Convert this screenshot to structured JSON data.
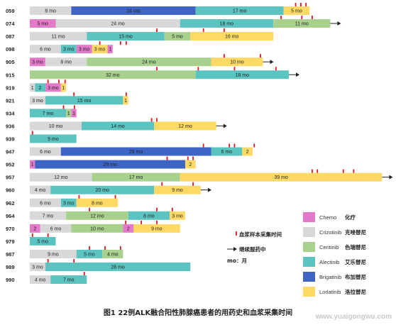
{
  "colors": {
    "Chemo": "#e37ac9",
    "Crizotinib": "#d8d8d8",
    "Ceritinib": "#a9d18e",
    "Alectinib": "#5bc4c0",
    "Brigatinib": "#3e65c6",
    "Lorlatinib": "#ffd966",
    "sample_tick": "#e8141e",
    "arrow": "#222222"
  },
  "chart_data": {
    "type": "swimmer",
    "title": "",
    "xlabel": "",
    "ylabel": "",
    "rows": [
      {
        "id": "059",
        "segments": [
          {
            "drug": "Crizotinib",
            "months": 8,
            "label": "8 mo"
          },
          {
            "drug": "Brigatinib",
            "months": 24,
            "label": "24 mo"
          },
          {
            "drug": "Alectinib",
            "months": 17,
            "label": "17 mo"
          },
          {
            "drug": "Lorlatinib",
            "months": 5,
            "label": "5 mo"
          }
        ],
        "samples": [
          51.3,
          52.3,
          53.3
        ],
        "ongoing": false
      },
      {
        "id": "074",
        "segments": [
          {
            "drug": "Chemo",
            "months": 5,
            "label": "5 mo"
          },
          {
            "drug": "Crizotinib",
            "months": 24,
            "label": "24 mo"
          },
          {
            "drug": "Alectinib",
            "months": 18,
            "label": "18 mo"
          },
          {
            "drug": "Ceritinib",
            "months": 11,
            "label": "11 mo"
          }
        ],
        "samples": [
          48.5,
          52.5,
          54.5
        ],
        "ongoing": true
      },
      {
        "id": "087",
        "segments": [
          {
            "drug": "Crizotinib",
            "months": 11,
            "label": "11 mo"
          },
          {
            "drug": "Alectinib",
            "months": 15,
            "label": "15 mo"
          },
          {
            "drug": "Ceritinib",
            "months": 5,
            "label": "5 mo"
          },
          {
            "drug": "Lorlatinib",
            "months": 16,
            "label": "16 mo"
          }
        ],
        "samples": [
          24.5,
          33.5,
          37.5
        ],
        "ongoing": false
      },
      {
        "id": "098",
        "segments": [
          {
            "drug": "Crizotinib",
            "months": 6,
            "label": "6 mo"
          },
          {
            "drug": "Alectinib",
            "months": 3,
            "label": "3 mo"
          },
          {
            "drug": "Chemo",
            "months": 3,
            "label": "3 mo"
          },
          {
            "drug": "Lorlatinib",
            "months": 3,
            "label": "3 mo"
          },
          {
            "drug": "Chemo",
            "months": 1,
            "label": "1"
          }
        ],
        "samples": [
          13.5,
          17.5,
          18.6
        ],
        "ongoing": false
      },
      {
        "id": "905",
        "segments": [
          {
            "drug": "Chemo",
            "months": 3,
            "label": "3 mo"
          },
          {
            "drug": "Crizotinib",
            "months": 8,
            "label": "8 mo"
          },
          {
            "drug": "Ceritinib",
            "months": 24,
            "label": "24 mo"
          },
          {
            "drug": "Lorlatinib",
            "months": 10,
            "label": "10 mo"
          }
        ],
        "samples": [
          37.5,
          44.5
        ],
        "ongoing": true
      },
      {
        "id": "915",
        "segments": [
          {
            "drug": "Ceritinib",
            "months": 32,
            "label": "32 mo"
          },
          {
            "drug": "Alectinib",
            "months": 18,
            "label": "18 mo"
          }
        ],
        "samples": [
          24.5,
          32.5,
          39.5,
          47.5
        ],
        "ongoing": true
      },
      {
        "id": "919",
        "segments": [
          {
            "drug": "Crizotinib",
            "months": 1,
            "label": "1"
          },
          {
            "drug": "Alectinib",
            "months": 2,
            "label": "2"
          },
          {
            "drug": "Chemo",
            "months": 3,
            "label": "3 mo"
          },
          {
            "drug": "Lorlatinib",
            "months": 1,
            "label": "1"
          }
        ],
        "samples": [
          3.5,
          5.6,
          6.8
        ],
        "ongoing": false
      },
      {
        "id": "921",
        "segments": [
          {
            "drug": "Crizotinib",
            "months": 3,
            "label": "3 mo"
          },
          {
            "drug": "Alectinib",
            "months": 15,
            "label": "15 mo"
          },
          {
            "drug": "Lorlatinib",
            "months": 1,
            "label": "1"
          }
        ],
        "samples": [
          8.5,
          18.6
        ],
        "ongoing": false
      },
      {
        "id": "934",
        "segments": [
          {
            "drug": "Alectinib",
            "months": 7,
            "label": "7 mo"
          },
          {
            "drug": "Ceritinib",
            "months": 1,
            "label": "1"
          },
          {
            "drug": "Chemo",
            "months": 1,
            "label": "1"
          }
        ],
        "samples": [
          6.5,
          8.6
        ],
        "ongoing": false
      },
      {
        "id": "936",
        "segments": [
          {
            "drug": "Crizotinib",
            "months": 10,
            "label": "10 mo"
          },
          {
            "drug": "Alectinib",
            "months": 14,
            "label": "14 mo"
          },
          {
            "drug": "Lorlatinib",
            "months": 12,
            "label": "12 mo"
          }
        ],
        "samples": [
          23.5,
          24.5
        ],
        "ongoing": true
      },
      {
        "id": "939",
        "segments": [
          {
            "drug": "Alectinib",
            "months": 9,
            "label": "9 mo"
          }
        ],
        "samples": [
          0.5
        ],
        "ongoing": false
      },
      {
        "id": "947",
        "segments": [
          {
            "drug": "Crizotinib",
            "months": 6,
            "label": "6 mo"
          },
          {
            "drug": "Brigatinib",
            "months": 29,
            "label": "29 mo"
          },
          {
            "drug": "Alectinib",
            "months": 6,
            "label": "6 mo"
          },
          {
            "drug": "Lorlatinib",
            "months": 2,
            "label": "2"
          }
        ],
        "samples": [
          33.5,
          38.5,
          39.5,
          43.3
        ],
        "ongoing": false
      },
      {
        "id": "952",
        "segments": [
          {
            "drug": "Chemo",
            "months": 1,
            "label": "1"
          },
          {
            "drug": "Brigatinib",
            "months": 29,
            "label": "29 mo"
          },
          {
            "drug": "Lorlatinib",
            "months": 2,
            "label": "2"
          }
        ],
        "samples": [
          26.5,
          30.5,
          31.5
        ],
        "ongoing": false
      },
      {
        "id": "957",
        "segments": [
          {
            "drug": "Crizotinib",
            "months": 12,
            "label": "12 mo"
          },
          {
            "drug": "Ceritinib",
            "months": 17,
            "label": "17 mo"
          },
          {
            "drug": "Lorlatinib",
            "months": 39,
            "label": "39 mo"
          }
        ],
        "samples": [
          54.5,
          55.5,
          60.5,
          62.5
        ],
        "ongoing": true
      },
      {
        "id": "960",
        "segments": [
          {
            "drug": "Crizotinib",
            "months": 4,
            "label": "4 mo"
          },
          {
            "drug": "Alectinib",
            "months": 20,
            "label": "20 mo"
          },
          {
            "drug": "Lorlatinib",
            "months": 9,
            "label": "9 mo"
          }
        ],
        "samples": [
          25.5,
          31.5
        ],
        "ongoing": true
      },
      {
        "id": "962",
        "segments": [
          {
            "drug": "Crizotinib",
            "months": 6,
            "label": "6 mo"
          },
          {
            "drug": "Alectinib",
            "months": 3,
            "label": "3 mo"
          },
          {
            "drug": "Lorlatinib",
            "months": 8,
            "label": "8 mo"
          }
        ],
        "samples": [
          9.5,
          16.5
        ],
        "ongoing": false
      },
      {
        "id": "964",
        "segments": [
          {
            "drug": "Crizotinib",
            "months": 7,
            "label": "7 mo"
          },
          {
            "drug": "Ceritinib",
            "months": 12,
            "label": "12 mo"
          },
          {
            "drug": "Alectinib",
            "months": 8,
            "label": "8 mo"
          },
          {
            "drug": "Lorlatinib",
            "months": 3,
            "label": "3 mo"
          }
        ],
        "samples": [
          11.5,
          24.5,
          27.5
        ],
        "ongoing": false
      },
      {
        "id": "970",
        "segments": [
          {
            "drug": "Chemo",
            "months": 2,
            "label": "2"
          },
          {
            "drug": "Crizotinib",
            "months": 6,
            "label": "6 mo"
          },
          {
            "drug": "Ceritinib",
            "months": 10,
            "label": "10 mo"
          },
          {
            "drug": "Chemo",
            "months": 2,
            "label": "2"
          },
          {
            "drug": "Lorlatinib",
            "months": 9,
            "label": "9 mo"
          }
        ],
        "samples": [
          18.5,
          21.5,
          24.5
        ],
        "ongoing": false
      },
      {
        "id": "979",
        "segments": [
          {
            "drug": "Alectinib",
            "months": 5,
            "label": "5 mo"
          }
        ],
        "samples": [
          0.5,
          3.5
        ],
        "ongoing": false
      },
      {
        "id": "987",
        "segments": [
          {
            "drug": "Crizotinib",
            "months": 9,
            "label": "9 mo"
          },
          {
            "drug": "Alectinib",
            "months": 5,
            "label": "5 mo"
          },
          {
            "drug": "Ceritinib",
            "months": 4,
            "label": "4 mo"
          }
        ],
        "samples": [
          11.5,
          14.5,
          17.5
        ],
        "ongoing": false
      },
      {
        "id": "989",
        "segments": [
          {
            "drug": "Crizotinib",
            "months": 3,
            "label": "3 mo"
          },
          {
            "drug": "Alectinib",
            "months": 28,
            "label": "28 mo"
          }
        ],
        "samples": [
          3.5,
          8.5
        ],
        "ongoing": false
      },
      {
        "id": "990",
        "segments": [
          {
            "drug": "Crizotinib",
            "months": 4,
            "label": "4 mo"
          },
          {
            "drug": "Alectinib",
            "months": 7,
            "label": "7 mo"
          }
        ],
        "samples": [
          10.5
        ],
        "ongoing": false
      }
    ],
    "legend": [
      {
        "drug": "Chemo",
        "label": "Chemo",
        "cn": "化疗"
      },
      {
        "drug": "Crizotinib",
        "label": "Crizotinib",
        "cn": "克唑替尼"
      },
      {
        "drug": "Ceritinib",
        "label": "Ceritinib",
        "cn": "色瑞替尼"
      },
      {
        "drug": "Alectinib",
        "label": "Alectinib",
        "cn": "艾乐替尼"
      },
      {
        "drug": "Brigatinib",
        "label": "Brigatinib",
        "cn": "布加替尼"
      },
      {
        "drug": "Lorlatinib",
        "label": "Lorlatinib",
        "cn": "洛拉替尼"
      }
    ],
    "annotations": {
      "sample_note": "血浆样本采集时间",
      "ongoing_note": "继续服药中",
      "mo_note": "mo：月"
    }
  },
  "caption": "图1  22例ALK融合阳性肺腺癌患者的用药史和血浆采集时间",
  "watermark": "www.yuaigongwu.com"
}
